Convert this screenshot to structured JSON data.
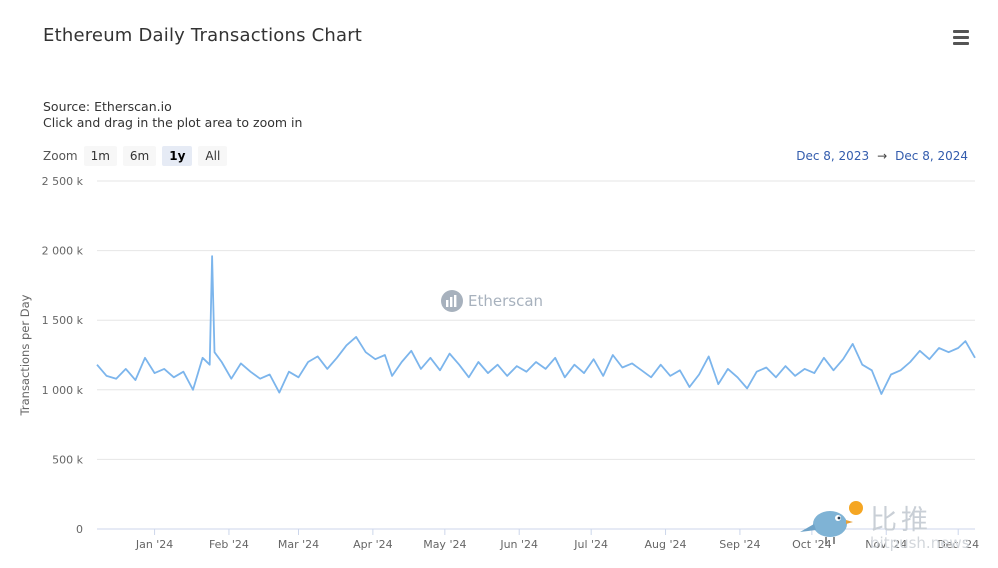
{
  "header": {
    "title": "Ethereum Daily Transactions Chart",
    "source": "Source: Etherscan.io",
    "hint": "Click and drag in the plot area to zoom in"
  },
  "zoom": {
    "label": "Zoom",
    "buttons": [
      "1m",
      "6m",
      "1y",
      "All"
    ],
    "active": "1y"
  },
  "range": {
    "from": "Dec 8, 2023",
    "arrow": "→",
    "to": "Dec 8, 2024"
  },
  "watermark": {
    "text": "Etherscan"
  },
  "brand": {
    "cn": "比推",
    "url": "bitpush.news"
  },
  "colors": {
    "line": "#7cb5ec",
    "range_text": "#335cad",
    "grid": "#e6e6e6"
  },
  "chart_data": {
    "type": "line",
    "title": "Ethereum Daily Transactions Chart",
    "ylabel": "Transactions per Day",
    "xlabel": "",
    "ylim": [
      0,
      2500000
    ],
    "yticks": [
      0,
      500000,
      1000000,
      1500000,
      2000000,
      2500000
    ],
    "ytick_labels": [
      "0",
      "500 k",
      "1 000 k",
      "1 500 k",
      "2 000 k",
      "2 500 k"
    ],
    "xlim": [
      "2023-12-08",
      "2024-12-08"
    ],
    "xticks": [
      "2024-01-01",
      "2024-02-01",
      "2024-03-01",
      "2024-04-01",
      "2024-05-01",
      "2024-06-01",
      "2024-07-01",
      "2024-08-01",
      "2024-09-01",
      "2024-10-01",
      "2024-11-01",
      "2024-12-01"
    ],
    "xtick_labels": [
      "Jan '24",
      "Feb '24",
      "Mar '24",
      "Apr '24",
      "May '24",
      "Jun '24",
      "Jul '24",
      "Aug '24",
      "Sep '24",
      "Oct '24",
      "Nov '24",
      "Dec '24"
    ],
    "grid": true,
    "series": [
      {
        "color": "#7cb5ec",
        "points": [
          [
            "2023-12-08",
            1180000
          ],
          [
            "2023-12-12",
            1100000
          ],
          [
            "2023-12-16",
            1080000
          ],
          [
            "2023-12-20",
            1150000
          ],
          [
            "2023-12-24",
            1070000
          ],
          [
            "2023-12-28",
            1230000
          ],
          [
            "2024-01-01",
            1120000
          ],
          [
            "2024-01-05",
            1150000
          ],
          [
            "2024-01-09",
            1090000
          ],
          [
            "2024-01-13",
            1130000
          ],
          [
            "2024-01-17",
            1000000
          ],
          [
            "2024-01-21",
            1230000
          ],
          [
            "2024-01-24",
            1180000
          ],
          [
            "2024-01-25",
            1960000
          ],
          [
            "2024-01-26",
            1270000
          ],
          [
            "2024-01-29",
            1200000
          ],
          [
            "2024-02-02",
            1080000
          ],
          [
            "2024-02-06",
            1190000
          ],
          [
            "2024-02-10",
            1130000
          ],
          [
            "2024-02-14",
            1080000
          ],
          [
            "2024-02-18",
            1110000
          ],
          [
            "2024-02-22",
            980000
          ],
          [
            "2024-02-26",
            1130000
          ],
          [
            "2024-03-01",
            1090000
          ],
          [
            "2024-03-05",
            1200000
          ],
          [
            "2024-03-09",
            1240000
          ],
          [
            "2024-03-13",
            1150000
          ],
          [
            "2024-03-17",
            1230000
          ],
          [
            "2024-03-21",
            1320000
          ],
          [
            "2024-03-25",
            1380000
          ],
          [
            "2024-03-29",
            1270000
          ],
          [
            "2024-04-02",
            1220000
          ],
          [
            "2024-04-06",
            1250000
          ],
          [
            "2024-04-09",
            1100000
          ],
          [
            "2024-04-13",
            1200000
          ],
          [
            "2024-04-17",
            1280000
          ],
          [
            "2024-04-21",
            1150000
          ],
          [
            "2024-04-25",
            1230000
          ],
          [
            "2024-04-29",
            1140000
          ],
          [
            "2024-05-03",
            1260000
          ],
          [
            "2024-05-07",
            1180000
          ],
          [
            "2024-05-11",
            1090000
          ],
          [
            "2024-05-15",
            1200000
          ],
          [
            "2024-05-19",
            1120000
          ],
          [
            "2024-05-23",
            1180000
          ],
          [
            "2024-05-27",
            1100000
          ],
          [
            "2024-05-31",
            1170000
          ],
          [
            "2024-06-04",
            1130000
          ],
          [
            "2024-06-08",
            1200000
          ],
          [
            "2024-06-12",
            1150000
          ],
          [
            "2024-06-16",
            1230000
          ],
          [
            "2024-06-20",
            1090000
          ],
          [
            "2024-06-24",
            1180000
          ],
          [
            "2024-06-28",
            1120000
          ],
          [
            "2024-07-02",
            1220000
          ],
          [
            "2024-07-06",
            1100000
          ],
          [
            "2024-07-10",
            1250000
          ],
          [
            "2024-07-14",
            1160000
          ],
          [
            "2024-07-18",
            1190000
          ],
          [
            "2024-07-22",
            1140000
          ],
          [
            "2024-07-26",
            1090000
          ],
          [
            "2024-07-30",
            1180000
          ],
          [
            "2024-08-03",
            1100000
          ],
          [
            "2024-08-07",
            1140000
          ],
          [
            "2024-08-11",
            1020000
          ],
          [
            "2024-08-15",
            1110000
          ],
          [
            "2024-08-19",
            1240000
          ],
          [
            "2024-08-23",
            1040000
          ],
          [
            "2024-08-27",
            1150000
          ],
          [
            "2024-08-31",
            1090000
          ],
          [
            "2024-09-04",
            1010000
          ],
          [
            "2024-09-08",
            1130000
          ],
          [
            "2024-09-12",
            1160000
          ],
          [
            "2024-09-16",
            1090000
          ],
          [
            "2024-09-20",
            1170000
          ],
          [
            "2024-09-24",
            1100000
          ],
          [
            "2024-09-28",
            1150000
          ],
          [
            "2024-10-02",
            1120000
          ],
          [
            "2024-10-06",
            1230000
          ],
          [
            "2024-10-10",
            1140000
          ],
          [
            "2024-10-14",
            1220000
          ],
          [
            "2024-10-18",
            1330000
          ],
          [
            "2024-10-22",
            1180000
          ],
          [
            "2024-10-26",
            1140000
          ],
          [
            "2024-10-30",
            970000
          ],
          [
            "2024-11-03",
            1110000
          ],
          [
            "2024-11-07",
            1140000
          ],
          [
            "2024-11-11",
            1200000
          ],
          [
            "2024-11-15",
            1280000
          ],
          [
            "2024-11-19",
            1220000
          ],
          [
            "2024-11-23",
            1300000
          ],
          [
            "2024-11-27",
            1270000
          ],
          [
            "2024-12-01",
            1300000
          ],
          [
            "2024-12-04",
            1350000
          ],
          [
            "2024-12-08",
            1230000
          ]
        ]
      }
    ]
  }
}
